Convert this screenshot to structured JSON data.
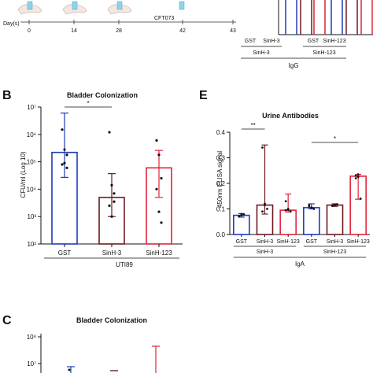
{
  "top_strip": {
    "days_label": "Day(s)",
    "days": [
      "0",
      "14",
      "28",
      "42",
      "43"
    ],
    "challenge_label": "CFT073",
    "partial_categories": [
      "GST",
      "SinH-3",
      "GST",
      "SinH-123"
    ],
    "partial_groups": [
      "SinH-3",
      "SinH-123"
    ],
    "partial_isotype": "IgG"
  },
  "chart_data": [
    {
      "type": "bar",
      "panel": "B",
      "title": "Bladder Colonization",
      "ylabel": "CFU/ml (Log 10)",
      "yscale": "log",
      "ylim": [
        100,
        10000000
      ],
      "ytick_labels": [
        "10²",
        "10³",
        "10⁴",
        "10⁵",
        "10⁶",
        "10⁷"
      ],
      "categories": [
        "GST",
        "SinH-3",
        "SinH-123"
      ],
      "values": [
        220000,
        5000,
        60000
      ],
      "err_low": [
        27000,
        1000,
        5000
      ],
      "err_high": [
        6000000,
        37000,
        260000
      ],
      "points": [
        [
          1500000,
          280000,
          180000,
          80000,
          90000,
          60000
        ],
        [
          1200000,
          14000,
          7000,
          2500,
          1000,
          3500
        ],
        [
          600000,
          180000,
          25000,
          10000,
          1500,
          600
        ]
      ],
      "colors": [
        "#1f3cb8",
        "#6e1a1f",
        "#e0233a"
      ],
      "group_label": "UTI89",
      "significance": [
        {
          "from": 0,
          "to": 1,
          "label": "*"
        }
      ]
    },
    {
      "type": "bar",
      "panel": "E",
      "title": "Urine Antibodies",
      "ylabel": "450nm ELISA signal",
      "ylim": [
        0,
        0.4
      ],
      "ytick_labels": [
        "0.0",
        "0.1",
        "0.2",
        "0.3",
        "0.4"
      ],
      "categories": [
        "GST",
        "SinH-3",
        "SinH-123",
        "GST",
        "SinH-3",
        "SinH-123"
      ],
      "values": [
        0.075,
        0.115,
        0.095,
        0.105,
        0.115,
        0.228
      ],
      "err_low": [
        0.068,
        0.08,
        0.088,
        0.1,
        0.11,
        0.138
      ],
      "err_high": [
        0.082,
        0.35,
        0.158,
        0.12,
        0.12,
        0.235
      ],
      "points": [
        [
          0.07,
          0.075,
          0.078,
          0.072,
          0.08
        ],
        [
          0.34,
          0.115,
          0.1,
          0.09,
          0.12
        ],
        [
          0.13,
          0.097,
          0.09,
          0.095,
          0.1
        ],
        [
          0.11,
          0.105,
          0.1,
          0.115,
          0.105
        ],
        [
          0.112,
          0.116,
          0.118,
          0.113,
          0.115
        ],
        [
          0.23,
          0.235,
          0.14,
          0.22,
          0.225
        ]
      ],
      "colors": [
        "#1f3cb8",
        "#6e1a1f",
        "#e0233a",
        "#1f3cb8",
        "#6e1a1f",
        "#e0233a"
      ],
      "groups": [
        "SinH-3",
        "SinH-123"
      ],
      "isotype": "IgA",
      "significance": [
        {
          "from": 0,
          "to": 1,
          "label": "**"
        },
        {
          "from": 3,
          "to": 5,
          "label": "*"
        }
      ]
    },
    {
      "type": "bar",
      "panel": "C",
      "title": "Bladder Colonization",
      "yscale": "log",
      "ytick_labels": [
        "10⁸",
        "10⁷"
      ]
    }
  ]
}
